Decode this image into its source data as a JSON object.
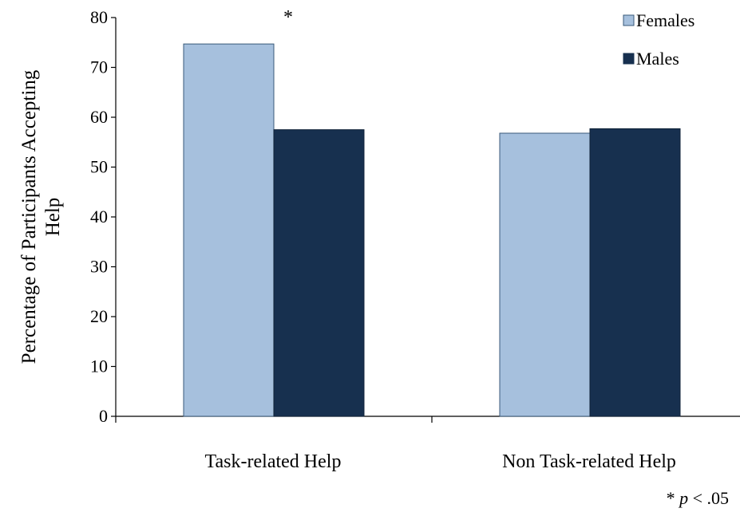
{
  "chart_data": {
    "type": "bar",
    "categories": [
      "Task-related Help",
      "Non Task-related Help"
    ],
    "series": [
      {
        "name": "Females",
        "values": [
          74.7,
          56.8
        ],
        "color": "#a6c0dd"
      },
      {
        "name": "Males",
        "values": [
          57.5,
          57.7
        ],
        "color": "#17304f"
      }
    ],
    "ylabel_lines": [
      "Percentage of Participants Accepting",
      "Help"
    ],
    "ylim": [
      0,
      80
    ],
    "yticks": [
      "0",
      "10",
      "20",
      "30",
      "40",
      "50",
      "60",
      "70",
      "80"
    ],
    "grid": false,
    "legend_position": "top-right",
    "annotations": [
      {
        "text": "*",
        "category": "Task-related Help"
      }
    ],
    "footnote": {
      "prefix": "* ",
      "italic": "p",
      "suffix": " < .05"
    }
  }
}
